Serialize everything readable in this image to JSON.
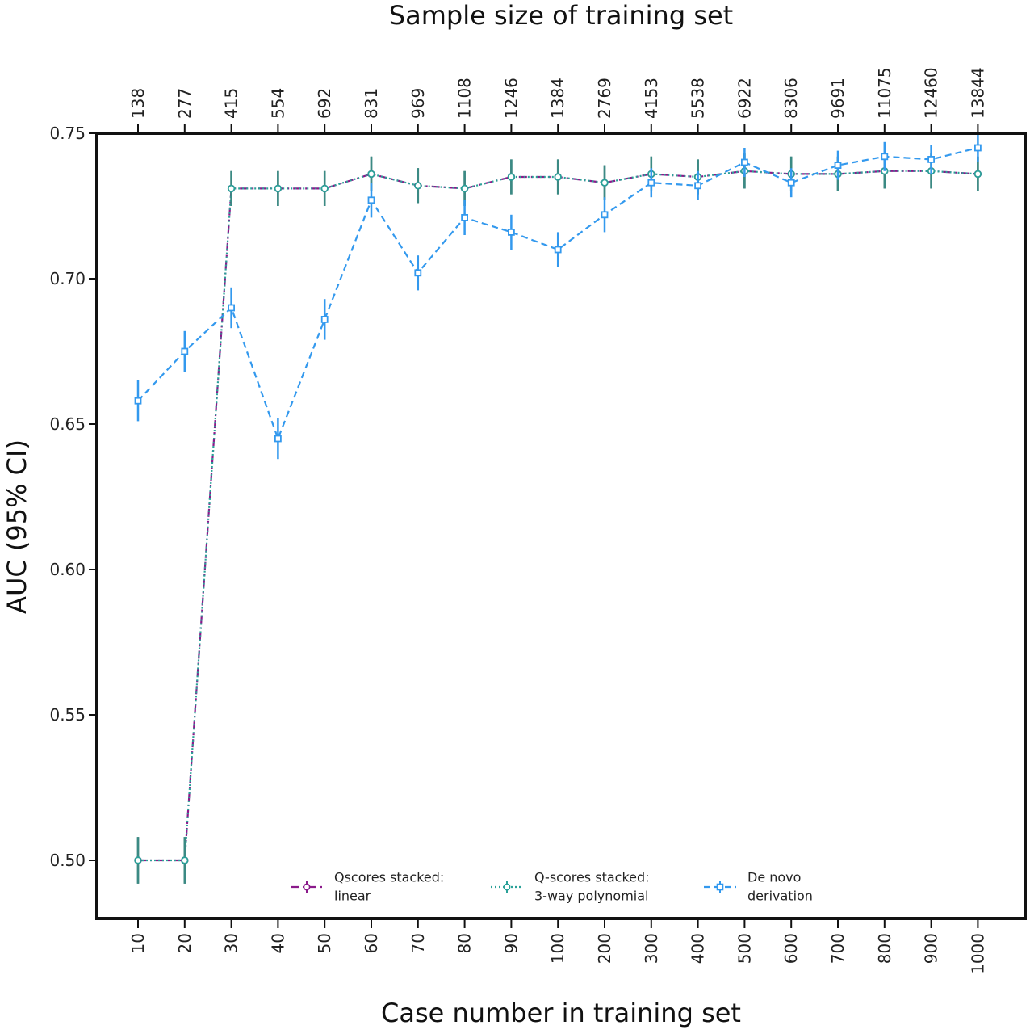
{
  "chart_data": {
    "type": "line",
    "title": "",
    "xlabel": "Case number in training set",
    "x2label": "Sample size of training set",
    "ylabel": "AUC (95% CI)",
    "categories": [
      "10",
      "20",
      "30",
      "40",
      "50",
      "60",
      "70",
      "80",
      "90",
      "100",
      "200",
      "300",
      "400",
      "500",
      "600",
      "700",
      "800",
      "900",
      "1000"
    ],
    "top_categories": [
      "138",
      "277",
      "415",
      "554",
      "692",
      "831",
      "969",
      "1108",
      "1246",
      "1384",
      "2769",
      "4153",
      "5538",
      "6922",
      "8306",
      "9691",
      "11075",
      "12460",
      "13844"
    ],
    "ylim": [
      0.48,
      0.75
    ],
    "yticks": [
      "0.50",
      "0.55",
      "0.60",
      "0.65",
      "0.70",
      "0.75"
    ],
    "grid": false,
    "legend_position": "bottom-center",
    "series": [
      {
        "name": "Qscores stacked:\n linear",
        "color": "#8b1a8b",
        "style": "dash-dot",
        "marker": "circle",
        "values": [
          0.5,
          0.5,
          0.731,
          0.731,
          0.731,
          0.736,
          0.732,
          0.731,
          0.735,
          0.735,
          0.733,
          0.736,
          0.735,
          0.737,
          0.736,
          0.736,
          0.737,
          0.737,
          0.736
        ],
        "err": [
          0.008,
          0.008,
          0.006,
          0.006,
          0.006,
          0.006,
          0.006,
          0.006,
          0.006,
          0.006,
          0.006,
          0.006,
          0.006,
          0.006,
          0.006,
          0.006,
          0.006,
          0.006,
          0.006
        ]
      },
      {
        "name": "Q-scores stacked:\n 3-way polynomial",
        "color": "#2aa198",
        "style": "dotted",
        "marker": "circle",
        "values": [
          0.5,
          0.5,
          0.731,
          0.731,
          0.731,
          0.736,
          0.732,
          0.731,
          0.735,
          0.735,
          0.733,
          0.736,
          0.735,
          0.737,
          0.736,
          0.736,
          0.737,
          0.737,
          0.736
        ],
        "err": [
          0.008,
          0.008,
          0.006,
          0.006,
          0.006,
          0.006,
          0.006,
          0.006,
          0.006,
          0.006,
          0.006,
          0.006,
          0.006,
          0.006,
          0.006,
          0.006,
          0.006,
          0.006,
          0.006
        ]
      },
      {
        "name": "De novo\n derivation",
        "color": "#3399ee",
        "style": "dashed",
        "marker": "square",
        "values": [
          0.658,
          0.675,
          0.69,
          0.645,
          0.686,
          0.727,
          0.702,
          0.721,
          0.716,
          0.71,
          0.722,
          0.733,
          0.732,
          0.74,
          0.733,
          0.739,
          0.742,
          0.741,
          0.745
        ],
        "err": [
          0.007,
          0.007,
          0.007,
          0.007,
          0.007,
          0.006,
          0.006,
          0.006,
          0.006,
          0.006,
          0.006,
          0.005,
          0.005,
          0.005,
          0.005,
          0.005,
          0.005,
          0.005,
          0.005
        ]
      }
    ]
  }
}
